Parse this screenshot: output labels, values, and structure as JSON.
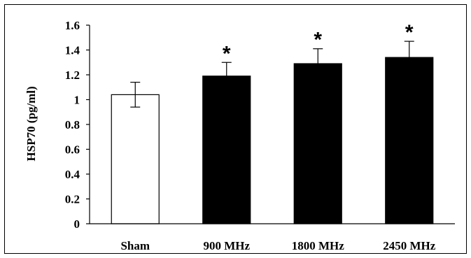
{
  "chart_data": {
    "type": "bar",
    "title": "",
    "xlabel": "",
    "ylabel": "HSP70 (pg/ml)",
    "ylim": [
      0,
      1.6
    ],
    "yticks": [
      "0",
      "0.2",
      "0.4",
      "0.6",
      "0.8",
      "1",
      "1.2",
      "1.4",
      "1.6"
    ],
    "categories": [
      "Sham",
      "900 MHz",
      "1800 MHz",
      "2450 MHz"
    ],
    "values": [
      1.04,
      1.19,
      1.29,
      1.34
    ],
    "errors": [
      0.1,
      0.11,
      0.12,
      0.13
    ],
    "significance": [
      "",
      "*",
      "*",
      "*"
    ],
    "bar_colors": [
      "#ffffff",
      "#000000",
      "#000000",
      "#000000"
    ],
    "grid": false,
    "legend": "none"
  }
}
